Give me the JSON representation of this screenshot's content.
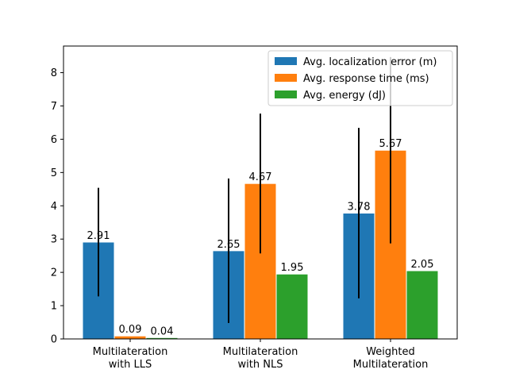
{
  "chart_data": {
    "type": "bar",
    "title": "",
    "xlabel": "",
    "ylabel": "",
    "ylim": [
      0,
      8.8
    ],
    "yticks": [
      0,
      1,
      2,
      3,
      4,
      5,
      6,
      7,
      8
    ],
    "grid": false,
    "legend_position": "top-right",
    "categories": [
      [
        "Multilateration",
        "with LLS"
      ],
      [
        "Multilateration",
        "with NLS"
      ],
      [
        "Weighted",
        "Multilateration"
      ]
    ],
    "series": [
      {
        "name": "Avg. localization error (m)",
        "color": "#1f77b4",
        "values": [
          2.91,
          2.65,
          3.78
        ],
        "labels": [
          "2.91",
          "2.65",
          "3.78"
        ],
        "error": [
          1.63,
          2.17,
          2.56
        ]
      },
      {
        "name": "Avg. response time (ms)",
        "color": "#ff7f0e",
        "values": [
          0.09,
          4.67,
          5.67
        ],
        "labels": [
          "0.09",
          "4.67",
          "5.67"
        ],
        "error": [
          0.0,
          2.1,
          2.8
        ]
      },
      {
        "name": "Avg. energy (dJ)",
        "color": "#2ca02c",
        "values": [
          0.04,
          1.95,
          2.05
        ],
        "labels": [
          "0.04",
          "1.95",
          "2.05"
        ],
        "error": [
          0.0,
          0.0,
          0.0
        ]
      }
    ]
  }
}
